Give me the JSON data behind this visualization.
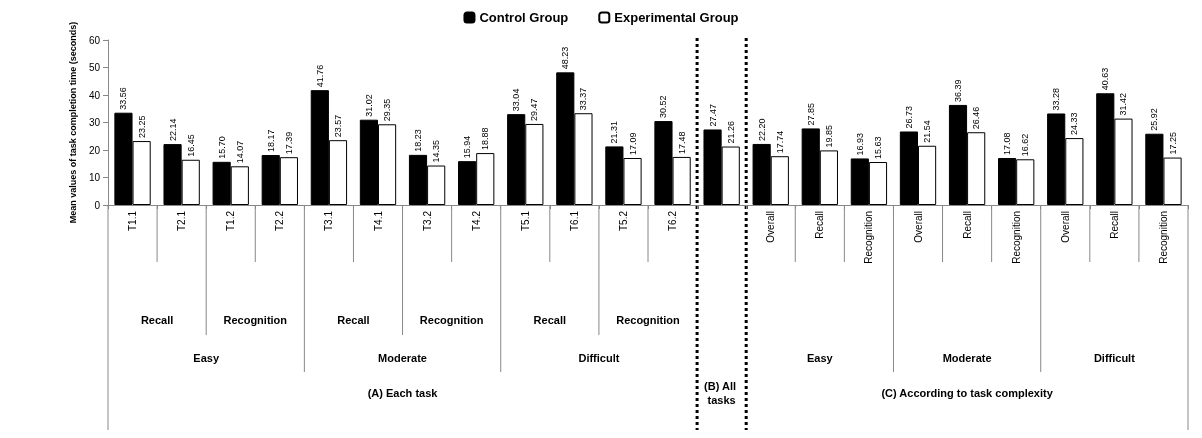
{
  "chart_data": {
    "type": "bar",
    "ylabel": "Mean values of task completion time (seconds)",
    "categories": [
      "T1.1",
      "T2.1",
      "T1.2",
      "T2.2",
      "T3.1",
      "T4.1",
      "T3.2",
      "T4.2",
      "T5.1",
      "T6.1",
      "T5.2",
      "T6.2",
      null,
      "Overall",
      "Recall",
      "Recognition",
      "Overall",
      "Recall",
      "Recognition",
      "Overall",
      "Recall",
      "Recognition"
    ],
    "series": [
      {
        "name": "Control Group",
        "color": "#000000",
        "values": [
          33.56,
          22.14,
          15.7,
          18.17,
          41.76,
          31.02,
          18.23,
          15.94,
          33.04,
          48.23,
          21.31,
          30.52,
          27.47,
          22.2,
          27.85,
          16.93,
          26.73,
          36.39,
          17.08,
          33.28,
          40.63,
          25.92
        ],
        "value_labels": [
          "33.56",
          "22.14",
          "15.70",
          "18.17",
          "41.76",
          "31.02",
          "18.23",
          "15.94",
          "33.04",
          "48.23",
          "21.31",
          "30.52",
          "27.47",
          "22.20",
          "27.85",
          "16.93",
          "26.73",
          "36.39",
          "17.08",
          "33.28",
          "40.63",
          "25.92"
        ]
      },
      {
        "name": "Experimental Group",
        "color": "#ffffff",
        "values": [
          23.25,
          16.45,
          14.07,
          17.39,
          23.57,
          29.35,
          14.35,
          18.88,
          29.47,
          33.37,
          17.09,
          17.48,
          21.26,
          17.74,
          19.85,
          15.63,
          21.54,
          26.46,
          16.62,
          24.33,
          31.42,
          17.25
        ],
        "value_labels": [
          "23.25",
          "16.45",
          "14.07",
          "17.39",
          "23.57",
          "29.35",
          "14.35",
          "18.88",
          "29.47",
          "33.37",
          "17.09",
          "17.48",
          "21.26",
          "17.74",
          "19.85",
          "15.63",
          "21.54",
          "26.46",
          "16.62",
          "24.33",
          "31.42",
          "17.25"
        ]
      }
    ],
    "ylim": [
      0,
      60
    ],
    "yticks": [
      0,
      10,
      20,
      30,
      40,
      50,
      60
    ],
    "grid": false,
    "legend": "top",
    "annotations": [
      "Recall",
      "Recognition",
      "Recall",
      "Recognition",
      "Recall",
      "Recognition",
      "Easy",
      "Moderate",
      "Difficult",
      "Easy",
      "Moderate",
      "Difficult",
      "(A) Each task",
      "(B) All tasks",
      "(C) According to task complexity"
    ]
  }
}
